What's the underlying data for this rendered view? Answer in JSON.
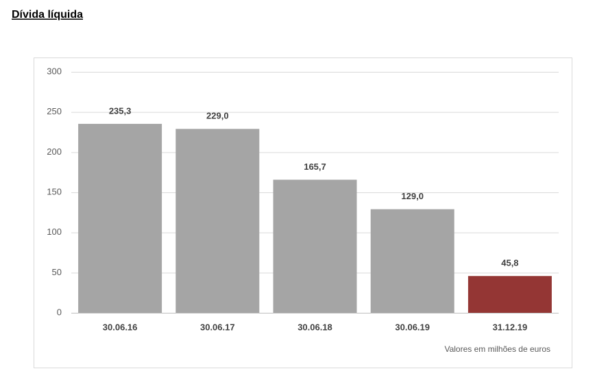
{
  "chart_data": {
    "type": "bar",
    "title": "Dívida líquida",
    "categories": [
      "30.06.16",
      "30.06.17",
      "30.06.18",
      "30.06.19",
      "31.12.19"
    ],
    "values": [
      235.3,
      229.0,
      165.7,
      129.0,
      45.8
    ],
    "value_labels": [
      "235,3",
      "229,0",
      "165,7",
      "129,0",
      "45,8"
    ],
    "colors": [
      "#a5a5a5",
      "#a5a5a5",
      "#a5a5a5",
      "#a5a5a5",
      "#943634"
    ],
    "ylim": [
      0,
      300
    ],
    "yticks": [
      0,
      50,
      100,
      150,
      200,
      250,
      300
    ],
    "grid": true,
    "note": "Valores em milhões de euros"
  }
}
